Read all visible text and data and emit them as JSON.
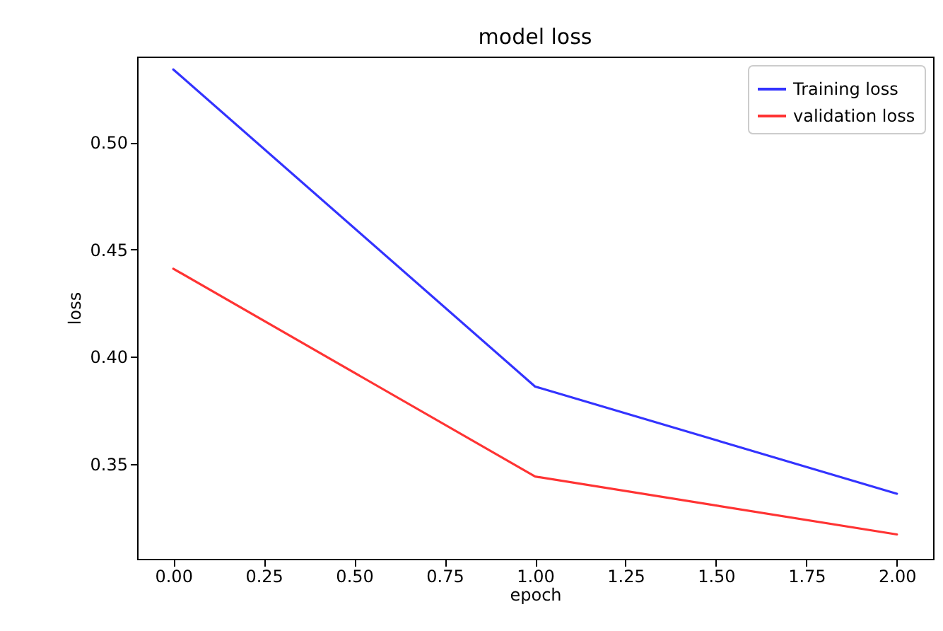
{
  "chart_data": {
    "type": "line",
    "title": "model loss",
    "xlabel": "epoch",
    "ylabel": "loss",
    "x": [
      0,
      1,
      2
    ],
    "series": [
      {
        "name": "Training loss",
        "color": "#3333ff",
        "values": [
          0.534,
          0.386,
          0.336
        ]
      },
      {
        "name": "validation loss",
        "color": "#ff3333",
        "values": [
          0.441,
          0.344,
          0.317
        ]
      }
    ],
    "xlim": [
      -0.1,
      2.1
    ],
    "xticks": [
      {
        "value": 0,
        "label": "0.00"
      },
      {
        "value": 0.25,
        "label": "0.25"
      },
      {
        "value": 0.5,
        "label": "0.50"
      },
      {
        "value": 0.75,
        "label": "0.75"
      },
      {
        "value": 1,
        "label": "1.00"
      },
      {
        "value": 1.25,
        "label": "1.25"
      },
      {
        "value": 1.5,
        "label": "1.50"
      },
      {
        "value": 1.75,
        "label": "1.75"
      },
      {
        "value": 2,
        "label": "2.00"
      }
    ],
    "ylim": [
      0.3056,
      0.54
    ],
    "yticks": [
      {
        "value": 0.35,
        "label": "0.35"
      },
      {
        "value": 0.4,
        "label": "0.40"
      },
      {
        "value": 0.45,
        "label": "0.45"
      },
      {
        "value": 0.5,
        "label": "0.50"
      }
    ],
    "grid": false,
    "legend": "top right",
    "line_style": "solid"
  }
}
